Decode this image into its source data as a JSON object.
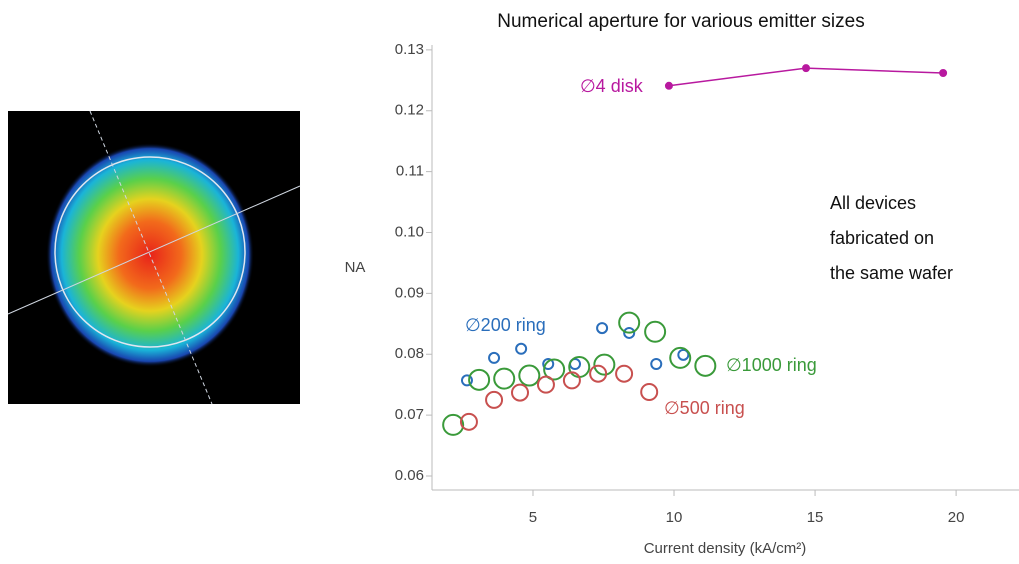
{
  "chart_data": {
    "type": "scatter",
    "title": "Numerical aperture for various emitter sizes",
    "x_label": "Current density (kA/cm²)",
    "y_label": "NA",
    "xlim": [
      1.42,
      22.23
    ],
    "xticks": [
      5,
      10,
      15,
      20
    ],
    "ylim": [
      0.0577,
      0.1308
    ],
    "yticks": [
      {
        "value": 0.06,
        "label": "0.06"
      },
      {
        "value": 0.07,
        "label": "0.07"
      },
      {
        "value": 0.08,
        "label": "0.08"
      },
      {
        "value": 0.09,
        "label": "0.09"
      },
      {
        "value": 0.1,
        "label": "0.10"
      },
      {
        "value": 0.11,
        "label": "0.11"
      },
      {
        "value": 0.12,
        "label": "0.12"
      },
      {
        "value": 0.13,
        "label": "0.13"
      }
    ],
    "annotation": [
      "All devices",
      "fabricated on",
      "the same wafer"
    ],
    "series": [
      {
        "name": "∅4 disk",
        "color": "#b8199f",
        "connected": true,
        "x": [
          9.82,
          14.68,
          19.54
        ],
        "values": [
          0.1241,
          0.127,
          0.1262
        ]
      },
      {
        "name": "∅200 ring",
        "color": "#2a6ebb",
        "x": [
          2.66,
          3.62,
          4.58,
          5.54,
          6.49,
          7.45,
          8.41,
          9.37,
          10.33
        ],
        "values": [
          0.0757,
          0.0794,
          0.0809,
          0.0784,
          0.0784,
          0.0843,
          0.0835,
          0.0784,
          0.0799
        ]
      },
      {
        "name": "∅1000 ring",
        "color": "#3a9a3a",
        "x": [
          2.17,
          3.09,
          3.98,
          4.87,
          5.75,
          6.64,
          7.53,
          8.41,
          9.33,
          10.22,
          11.11
        ],
        "values": [
          0.0684,
          0.0758,
          0.076,
          0.0765,
          0.0775,
          0.0779,
          0.0783,
          0.0852,
          0.0837,
          0.0794,
          0.0781
        ]
      },
      {
        "name": "∅500 ring",
        "color": "#c8504f",
        "x": [
          2.73,
          3.62,
          4.54,
          5.46,
          6.38,
          7.31,
          8.23,
          9.12
        ],
        "values": [
          0.0689,
          0.0725,
          0.0737,
          0.075,
          0.0757,
          0.0768,
          0.0768,
          0.0738
        ]
      }
    ]
  }
}
